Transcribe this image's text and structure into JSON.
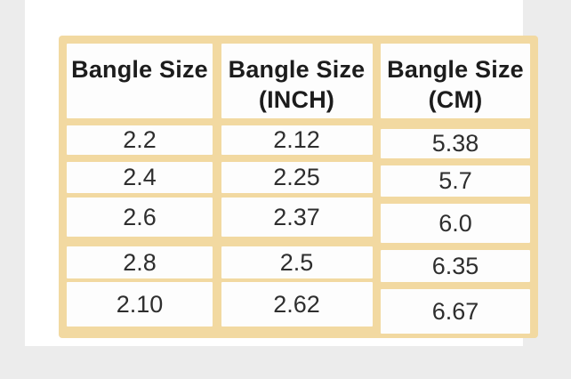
{
  "page": {
    "background_color": "#ececec",
    "panel_color": "#ffffff"
  },
  "chart_data": {
    "type": "table",
    "title": "",
    "border_color": "#f2d9a1",
    "cell_background": "#fdfdfd",
    "header_text_color": "#1c1c1c",
    "value_text_color": "#2e2e2e",
    "columns": [
      {
        "line1": "Bangle Size",
        "line2": ""
      },
      {
        "line1": "Bangle Size",
        "line2": "(INCH)"
      },
      {
        "line1": "Bangle Size",
        "line2": "(CM)"
      }
    ],
    "rows": [
      [
        "2.2",
        "2.12",
        "5.38"
      ],
      [
        "2.4",
        "2.25",
        "5.7"
      ],
      [
        "2.6",
        "2.37",
        "6.0"
      ],
      [
        "2.8",
        "2.5",
        "6.35"
      ],
      [
        "2.10",
        "2.62",
        "6.67"
      ]
    ]
  }
}
